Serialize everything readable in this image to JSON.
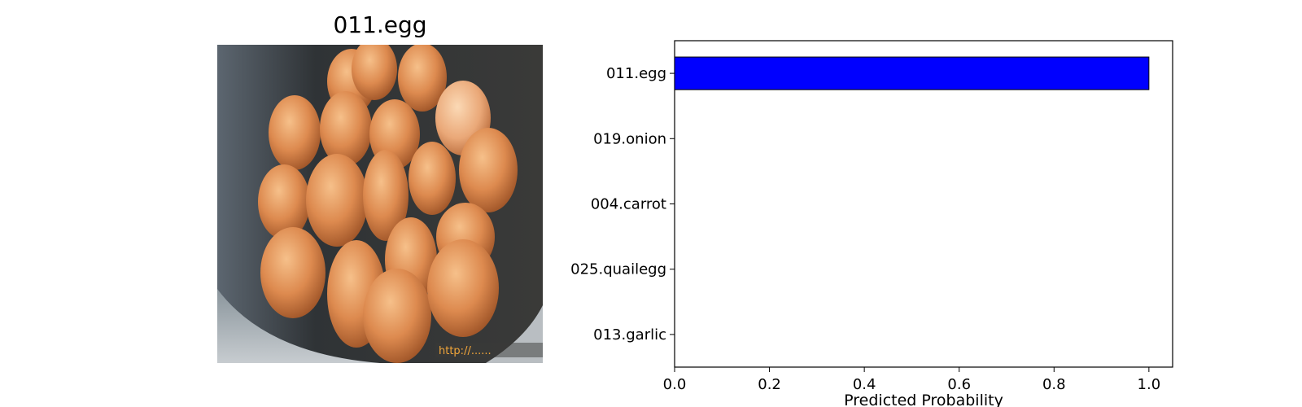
{
  "image_panel": {
    "title": "011.egg",
    "watermark": "http://..."
  },
  "chart_data": {
    "type": "bar",
    "orientation": "horizontal",
    "categories": [
      "011.egg",
      "019.onion",
      "004.carrot",
      "025.quailegg",
      "013.garlic"
    ],
    "values": [
      1.0,
      0.0,
      0.0,
      0.0,
      0.0
    ],
    "xlabel": "Predicted Probability",
    "ylabel": "",
    "xlim": [
      0.0,
      1.05
    ],
    "xticks": [
      "0.0",
      "0.2",
      "0.4",
      "0.6",
      "0.8",
      "1.0"
    ],
    "grid": false,
    "bar_color": "#0000ff",
    "edge_color": "#000000"
  }
}
